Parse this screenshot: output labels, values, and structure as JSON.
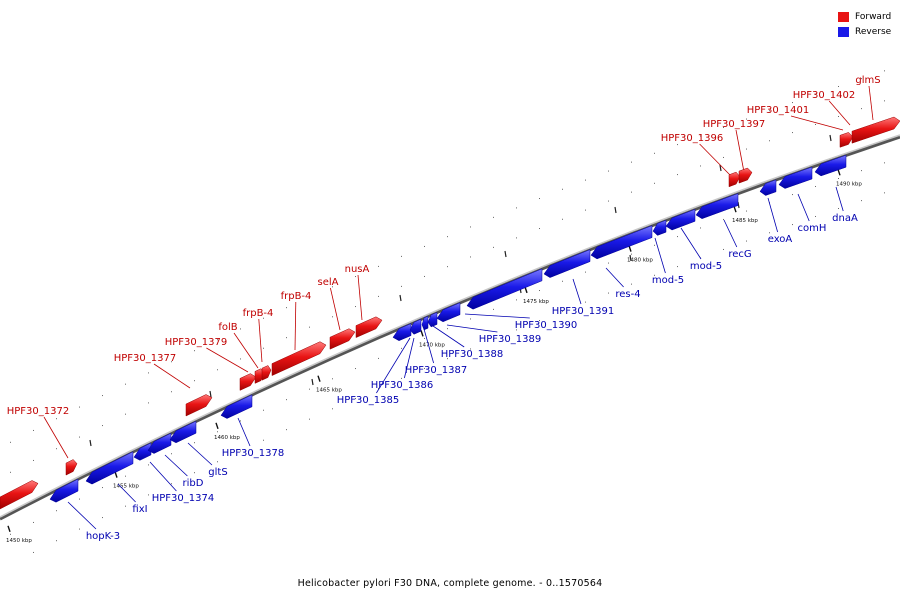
{
  "caption": "Helicobacter pylori F30 DNA, complete genome. - 0..1570564",
  "legend": {
    "forward_label": "Forward",
    "reverse_label": "Reverse",
    "forward_color": "#e81414",
    "reverse_color": "#1a1ae8"
  },
  "axis": {
    "ticks": [
      {
        "label": "1450 kbp"
      },
      {
        "label": "1455 kbp"
      },
      {
        "label": "1460 kbp"
      },
      {
        "label": "1465 kbp"
      },
      {
        "label": "1470 kbp"
      },
      {
        "label": "1475 kbp"
      },
      {
        "label": "1480 kbp"
      },
      {
        "label": "1485 kbp"
      },
      {
        "label": "1490 kbp"
      }
    ]
  },
  "genes_forward": [
    {
      "label": "HPF30_1372"
    },
    {
      "label": "HPF30_1377"
    },
    {
      "label": "HPF30_1379"
    },
    {
      "label": "folB"
    },
    {
      "label": "frpB-4"
    },
    {
      "label": "frpB-4"
    },
    {
      "label": "selA"
    },
    {
      "label": "nusA"
    },
    {
      "label": "HPF30_1396"
    },
    {
      "label": "HPF30_1397"
    },
    {
      "label": "HPF30_1401"
    },
    {
      "label": "HPF30_1402"
    },
    {
      "label": "glmS"
    }
  ],
  "genes_reverse": [
    {
      "label": "hopK-3"
    },
    {
      "label": "fixI"
    },
    {
      "label": "HPF30_1374"
    },
    {
      "label": "ribD"
    },
    {
      "label": "gltS"
    },
    {
      "label": "HPF30_1378"
    },
    {
      "label": "HPF30_1385"
    },
    {
      "label": "HPF30_1386"
    },
    {
      "label": "HPF30_1387"
    },
    {
      "label": "HPF30_1388"
    },
    {
      "label": "HPF30_1389"
    },
    {
      "label": "HPF30_1390"
    },
    {
      "label": "HPF30_1391"
    },
    {
      "label": "res-4"
    },
    {
      "label": "mod-5"
    },
    {
      "label": "mod-5"
    },
    {
      "label": "recG"
    },
    {
      "label": "exoA"
    },
    {
      "label": "comH"
    },
    {
      "label": "dnaA"
    }
  ]
}
